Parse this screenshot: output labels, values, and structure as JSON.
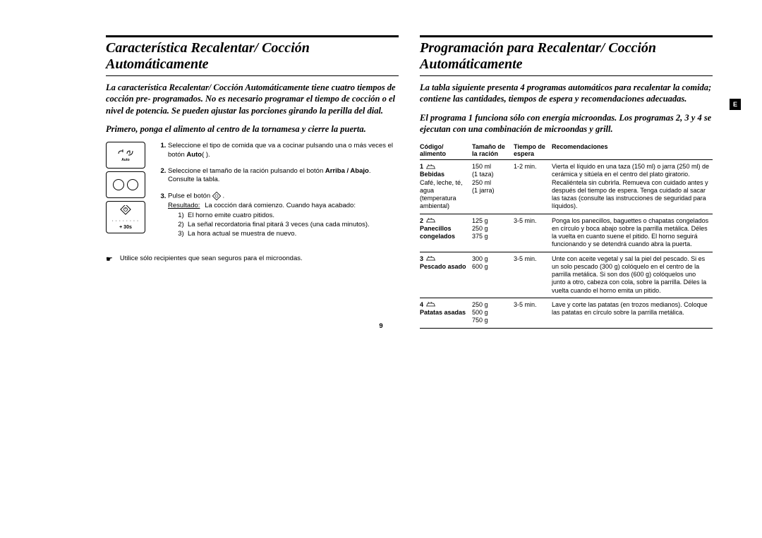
{
  "page_number": "9",
  "tab_label": "E",
  "left": {
    "title": "Característica Recalentar/ Cocción Automáticamente",
    "intro1": "La característica Recalentar/ Cocción Automáticamente tiene cuatro tiempos de cocción pre- programados. No es necesario programar el tiempo de cocción o el nivel de potencia. Se pueden ajustar las porciones girando la perilla del dial.",
    "intro2": "Primero, ponga el alimento al centro de la tornamesa y cierre la puerta.",
    "panel3_label": "+ 30s",
    "panel1_sub": "Auto",
    "step1_a": "Seleccione el tipo de comida que va a cocinar pulsando una o más veces el botón ",
    "step1_bold": "Auto",
    "step1_c": "( ).",
    "step2_a": "Seleccione el tamaño de la ración pulsando el botón ",
    "step2_bold": "Arriba / Abajo",
    "step2_c": ". Consulte la tabla.",
    "step3_a": "Pulse el botón ",
    "step3_b": ".",
    "result_label": "Resultado:",
    "result_text": "La cocción dará comienzo. Cuando haya acabado:",
    "sub1": "El horno emite cuatro pitidos.",
    "sub2": "La señal recordatoria final pitará 3 veces (una cada minutos).",
    "sub3": "La hora actual se muestra de nuevo.",
    "note_sym": "☛",
    "note": "Utilice sólo recipientes que sean seguros para el microondas."
  },
  "right": {
    "title": "Programación para Recalentar/ Cocción Automáticamente",
    "intro1": "La tabla siguiente presenta 4 programas automáticos para recalentar la comida; contiene las cantidades, tiempos de espera y recomendaciones adecuadas.",
    "intro2": "El programa 1 funciona sólo con energía microondas. Los programas 2, 3 y 4 se ejecutan con una combinación de microondas y grill.",
    "headers": {
      "c1a": "Código/",
      "c1b": "alimento",
      "c2a": "Tamaño de",
      "c2b": "la ración",
      "c3a": "Tiempo de",
      "c3b": "espera",
      "c4": "Recomendaciones"
    },
    "rows": [
      {
        "num": "1",
        "name": "Bebidas",
        "extra": "Café, leche, té, agua (temperatura ambiental)",
        "size": "150 ml\n(1 taza)\n250 ml\n(1 jarra)",
        "wait": "1-2 min.",
        "rec": "Vierta el líquido en una taza (150 ml) o jarra (250 ml) de cerámica y sitúela en el centro del plato giratorio. Recaliéntela sin cubrirla. Remueva con cuidado antes y después del tiempo de espera. Tenga cuidado al sacar las tazas (consulte las instrucciones de seguridad para líquidos)."
      },
      {
        "num": "2",
        "name": "Panecillos congelados",
        "extra": "",
        "size": "125 g\n250 g\n375 g",
        "wait": "3-5 min.",
        "rec": "Ponga los panecillos, baguettes o chapatas congelados en círculo y boca abajo sobre la parrilla metálica. Déles la vuelta en cuanto suene el pitido. El horno seguirá funcionando y se detendrá cuando abra la puerta."
      },
      {
        "num": "3",
        "name": "Pescado asado",
        "extra": "",
        "size": "300 g\n600 g",
        "wait": "3-5 min.",
        "rec": "Unte con aceite vegetal y sal la piel del pescado. Si es un solo pescado (300 g) colóquelo en el centro de la parrilla metálica. Si son dos (600 g) colóquelos uno junto a otro, cabeza con cola, sobre la parrilla. Déles la vuelta cuando el horno emita un pitido."
      },
      {
        "num": "4",
        "name": "Patatas asadas",
        "extra": "",
        "size": "250 g\n500 g\n750 g",
        "wait": "3-5 min.",
        "rec": "Lave y corte las patatas (en trozos medianos). Coloque las patatas en círculo sobre la parrilla metálica."
      }
    ]
  }
}
